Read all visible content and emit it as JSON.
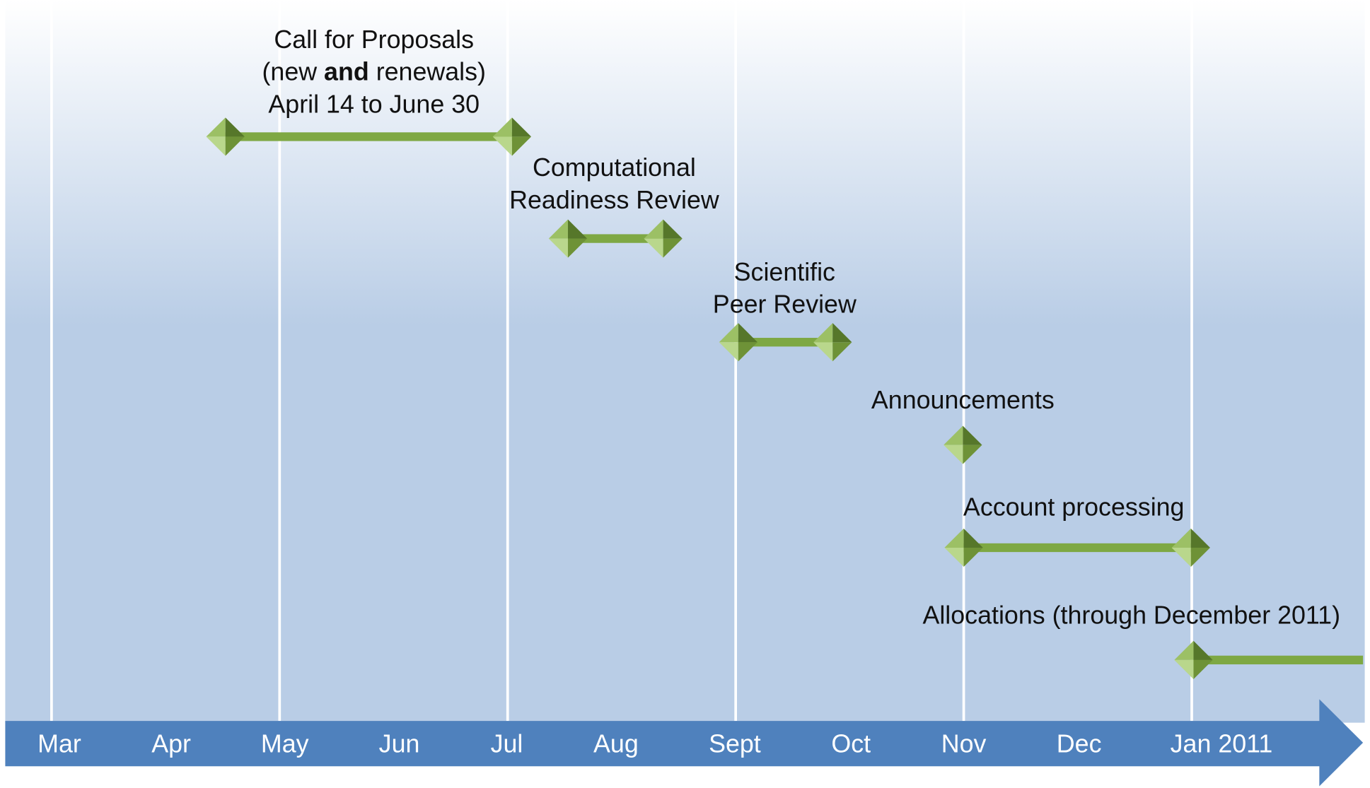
{
  "timeline": {
    "months": [
      "Mar",
      "Apr",
      "May",
      "Jun",
      "Jul",
      "Aug",
      "Sept",
      "Oct",
      "Nov",
      "Dec",
      "Jan 2011"
    ],
    "events": [
      {
        "label_lines": [
          [
            {
              "text": "Call for Proposals"
            }
          ],
          [
            {
              "text": "(new "
            },
            {
              "text": "and",
              "bold": true
            },
            {
              "text": " renewals)"
            }
          ],
          [
            {
              "text": "April 14 to June 30"
            }
          ]
        ]
      },
      {
        "label_lines": [
          [
            {
              "text": "Computational"
            }
          ],
          [
            {
              "text": "Readiness Review"
            }
          ]
        ]
      },
      {
        "label_lines": [
          [
            {
              "text": "Scientific"
            }
          ],
          [
            {
              "text": "Peer Review"
            }
          ]
        ]
      },
      {
        "label_lines": [
          [
            {
              "text": "Announcements"
            }
          ]
        ]
      },
      {
        "label_lines": [
          [
            {
              "text": "Account processing"
            }
          ]
        ]
      },
      {
        "label_lines": [
          [
            {
              "text": "Allocations (through December 2011)"
            }
          ]
        ]
      }
    ]
  }
}
